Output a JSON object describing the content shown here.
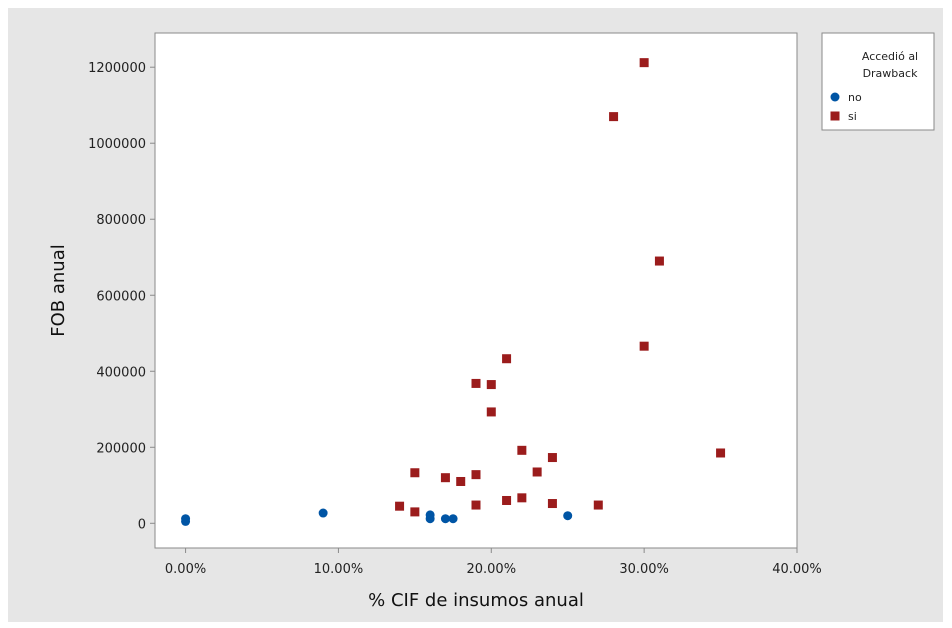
{
  "chart_data": {
    "type": "scatter",
    "title": "",
    "xlabel": "% CIF de insumos anual",
    "ylabel": "FOB anual",
    "xlim": [
      -0.02,
      0.4
    ],
    "ylim": [
      -65000,
      1290000
    ],
    "x_ticks": [
      0.0,
      0.1,
      0.2,
      0.3,
      0.4
    ],
    "x_tick_labels": [
      "0.00%",
      "10.00%",
      "20.00%",
      "30.00%",
      "40.00%"
    ],
    "y_ticks": [
      0,
      200000,
      400000,
      600000,
      800000,
      1000000,
      1200000
    ],
    "y_tick_labels": [
      "0",
      "200000",
      "400000",
      "600000",
      "800000",
      "1000000",
      "1200000"
    ],
    "grid": false,
    "legend": {
      "title": "Accedió al Drawback",
      "title_lines": [
        "Accedió al",
        "Drawback"
      ],
      "placement": "right"
    },
    "series": [
      {
        "name": "no",
        "marker": "circle",
        "color": "#0055a5",
        "points": [
          {
            "x": 0.0,
            "y": 5000
          },
          {
            "x": 0.0,
            "y": 12000
          },
          {
            "x": 0.09,
            "y": 27000
          },
          {
            "x": 0.16,
            "y": 12000
          },
          {
            "x": 0.16,
            "y": 22000
          },
          {
            "x": 0.17,
            "y": 12000
          },
          {
            "x": 0.175,
            "y": 12000
          },
          {
            "x": 0.25,
            "y": 20000
          }
        ]
      },
      {
        "name": "si",
        "marker": "square",
        "color": "#9b1c1c",
        "points": [
          {
            "x": 0.14,
            "y": 45000
          },
          {
            "x": 0.15,
            "y": 30000
          },
          {
            "x": 0.15,
            "y": 133000
          },
          {
            "x": 0.17,
            "y": 120000
          },
          {
            "x": 0.18,
            "y": 110000
          },
          {
            "x": 0.19,
            "y": 48000
          },
          {
            "x": 0.19,
            "y": 128000
          },
          {
            "x": 0.19,
            "y": 368000
          },
          {
            "x": 0.2,
            "y": 365000
          },
          {
            "x": 0.2,
            "y": 293000
          },
          {
            "x": 0.21,
            "y": 60000
          },
          {
            "x": 0.21,
            "y": 433000
          },
          {
            "x": 0.22,
            "y": 67000
          },
          {
            "x": 0.22,
            "y": 192000
          },
          {
            "x": 0.23,
            "y": 135000
          },
          {
            "x": 0.24,
            "y": 52000
          },
          {
            "x": 0.24,
            "y": 173000
          },
          {
            "x": 0.27,
            "y": 48000
          },
          {
            "x": 0.28,
            "y": 1070000
          },
          {
            "x": 0.3,
            "y": 1212000
          },
          {
            "x": 0.3,
            "y": 466000
          },
          {
            "x": 0.31,
            "y": 690000
          },
          {
            "x": 0.35,
            "y": 185000
          }
        ]
      }
    ]
  }
}
